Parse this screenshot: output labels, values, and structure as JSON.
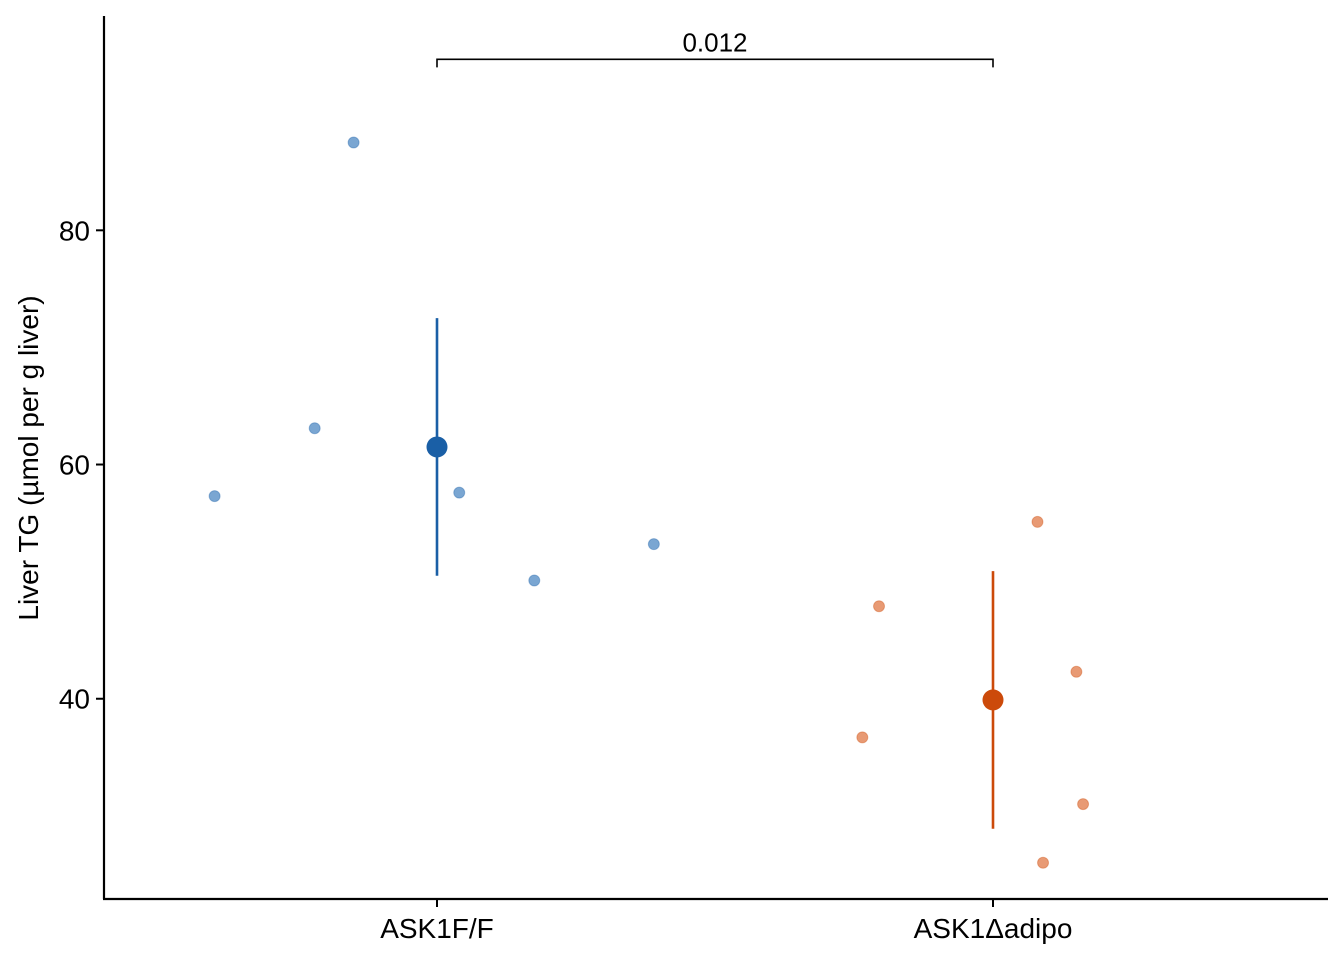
{
  "chart_data": {
    "type": "scatter",
    "xlabel": "",
    "ylabel": "Liver TG (µmol per g liver)",
    "categories": [
      "ASK1F/F",
      "ASK1Δadipo"
    ],
    "ylim": [
      22.9,
      98.3
    ],
    "yticks": [
      40,
      60,
      80
    ],
    "grid": false,
    "legend": "none",
    "colors": {
      "ASK1F/F": "#1a5fa6",
      "ASK1Δadipo": "#cc4a0a",
      "ASK1F/F_points": "#7aa6d2",
      "ASK1Δadipo_points": "#e89a74",
      "axis": "#000000"
    },
    "series": [
      {
        "category": "ASK1F/F",
        "mean": 61.5,
        "error_low": 50.5,
        "error_high": 72.5,
        "points": [
          {
            "jitter": -0.4,
            "y": 57.3
          },
          {
            "jitter": -0.22,
            "y": 63.1
          },
          {
            "jitter": -0.15,
            "y": 87.5
          },
          {
            "jitter": 0.04,
            "y": 57.6
          },
          {
            "jitter": 0.175,
            "y": 50.1
          },
          {
            "jitter": 0.39,
            "y": 53.2
          }
        ]
      },
      {
        "category": "ASK1Δadipo",
        "mean": 39.9,
        "error_low": 28.9,
        "error_high": 50.9,
        "points": [
          {
            "jitter": -0.235,
            "y": 36.7
          },
          {
            "jitter": -0.205,
            "y": 47.9
          },
          {
            "jitter": 0.08,
            "y": 55.1
          },
          {
            "jitter": 0.09,
            "y": 26.0
          },
          {
            "jitter": 0.15,
            "y": 42.3
          },
          {
            "jitter": 0.162,
            "y": 31.0
          }
        ]
      }
    ],
    "annotations": [
      {
        "text": "0.012",
        "from": "ASK1F/F",
        "to": "ASK1Δadipo",
        "y": 94.6
      }
    ]
  }
}
